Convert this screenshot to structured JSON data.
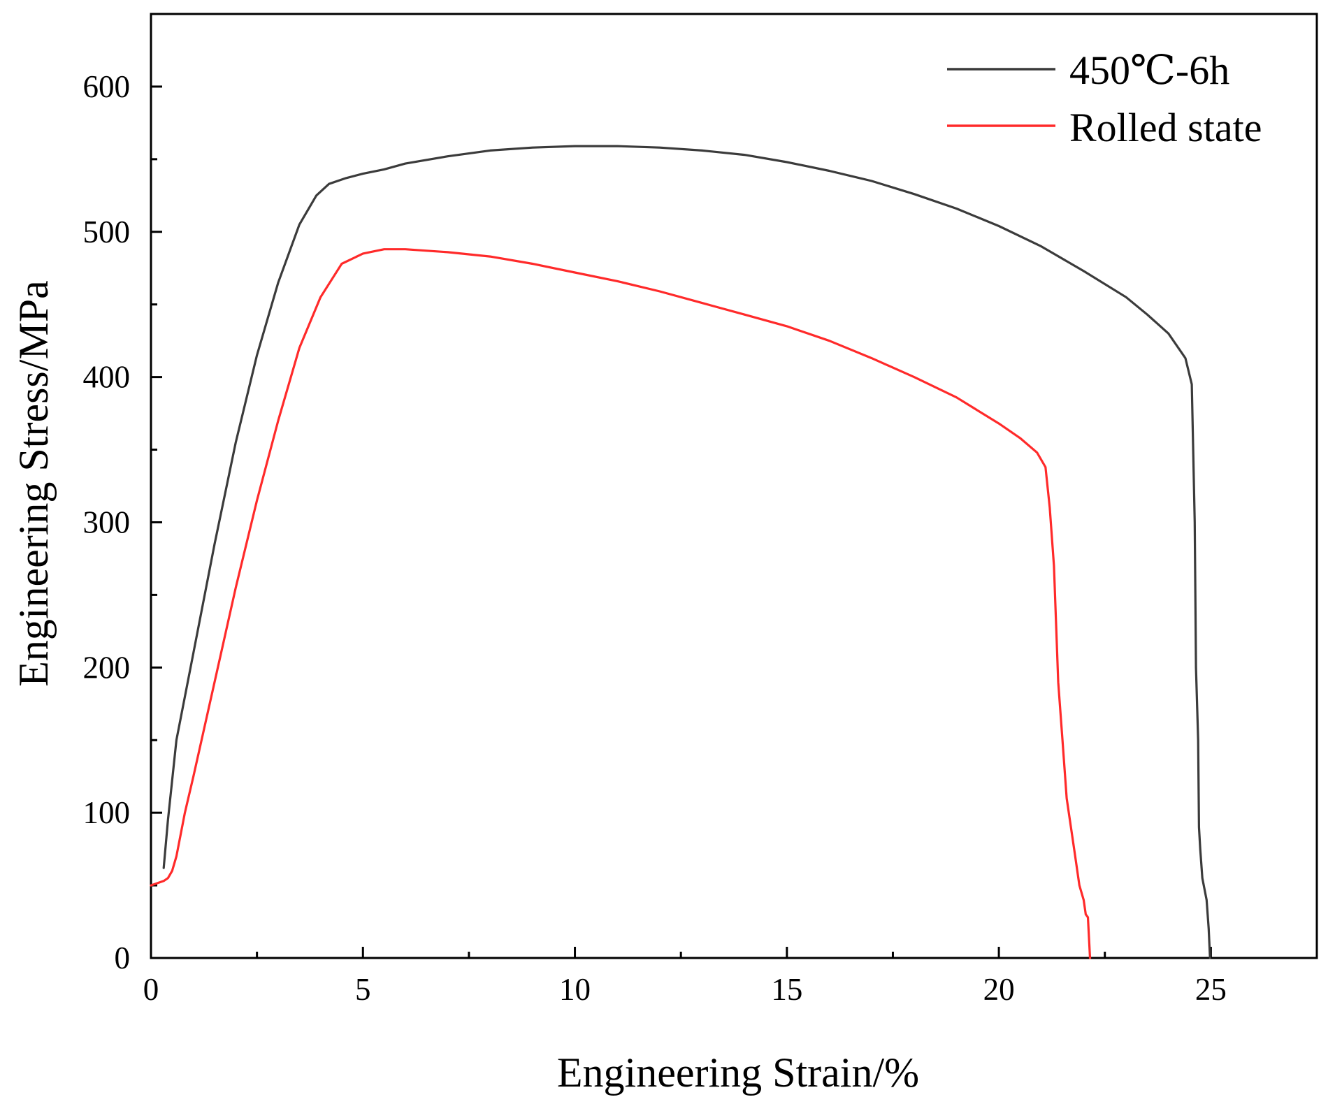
{
  "chart_data": {
    "type": "line",
    "title": "",
    "xlabel": "Engineering Strain/%",
    "ylabel": "Engineering Stress/MPa",
    "xlim": [
      0,
      27.5
    ],
    "ylim": [
      0,
      650
    ],
    "x_ticks": [
      0,
      5,
      10,
      15,
      20,
      25
    ],
    "x_minor_ticks": [
      2.5,
      7.5,
      12.5,
      17.5,
      22.5
    ],
    "y_ticks": [
      0,
      100,
      200,
      300,
      400,
      500,
      600
    ],
    "y_minor_ticks": [
      50,
      150,
      250,
      350,
      450,
      550
    ],
    "x_tick_labels": [
      "0",
      "5",
      "10",
      "15",
      "20",
      "25"
    ],
    "y_tick_labels": [
      "0",
      "100",
      "200",
      "300",
      "400",
      "500",
      "600"
    ],
    "grid": false,
    "legend_position": "top-right",
    "series": [
      {
        "name": "450℃-6h",
        "color": "#3b3b3b",
        "x": [
          0.3,
          0.4,
          0.6,
          1.0,
          1.5,
          2.0,
          2.5,
          3.0,
          3.5,
          3.9,
          4.2,
          4.6,
          5.0,
          5.5,
          6.0,
          7.0,
          8.0,
          9.0,
          10.0,
          10.5,
          11.0,
          12.0,
          13.0,
          14.0,
          15.0,
          16.0,
          17.0,
          18.0,
          19.0,
          20.0,
          21.0,
          22.0,
          23.0,
          23.5,
          24.0,
          24.4,
          24.55,
          24.62,
          24.65,
          24.7,
          24.72,
          24.75,
          24.8,
          24.9,
          24.95,
          24.98
        ],
        "y": [
          62,
          95,
          150,
          210,
          285,
          355,
          415,
          465,
          505,
          525,
          533,
          537,
          540,
          543,
          547,
          552,
          556,
          558,
          559,
          559,
          559,
          558,
          556,
          553,
          548,
          542,
          535,
          526,
          516,
          504,
          490,
          473,
          455,
          443,
          430,
          413,
          395,
          300,
          200,
          150,
          90,
          75,
          55,
          40,
          20,
          0
        ]
      },
      {
        "name": "Rolled state",
        "color": "#ff2a2a",
        "x": [
          0.0,
          0.3,
          0.4,
          0.5,
          0.6,
          0.8,
          1.0,
          1.5,
          2.0,
          2.5,
          3.0,
          3.5,
          4.0,
          4.5,
          5.0,
          5.5,
          6.0,
          6.5,
          7.0,
          8.0,
          9.0,
          10.0,
          11.0,
          12.0,
          13.0,
          14.0,
          15.0,
          16.0,
          17.0,
          18.0,
          19.0,
          20.0,
          20.5,
          20.9,
          21.1,
          21.2,
          21.3,
          21.4,
          21.5,
          21.6,
          21.7,
          21.8,
          21.9,
          22.0,
          22.05,
          22.1,
          22.15
        ],
        "y": [
          50,
          53,
          55,
          60,
          70,
          100,
          125,
          190,
          255,
          315,
          370,
          420,
          455,
          478,
          485,
          488,
          488,
          487,
          486,
          483,
          478,
          472,
          466,
          459,
          451,
          443,
          435,
          425,
          413,
          400,
          386,
          368,
          358,
          348,
          338,
          310,
          270,
          190,
          150,
          110,
          90,
          70,
          50,
          40,
          30,
          28,
          0
        ]
      }
    ]
  }
}
